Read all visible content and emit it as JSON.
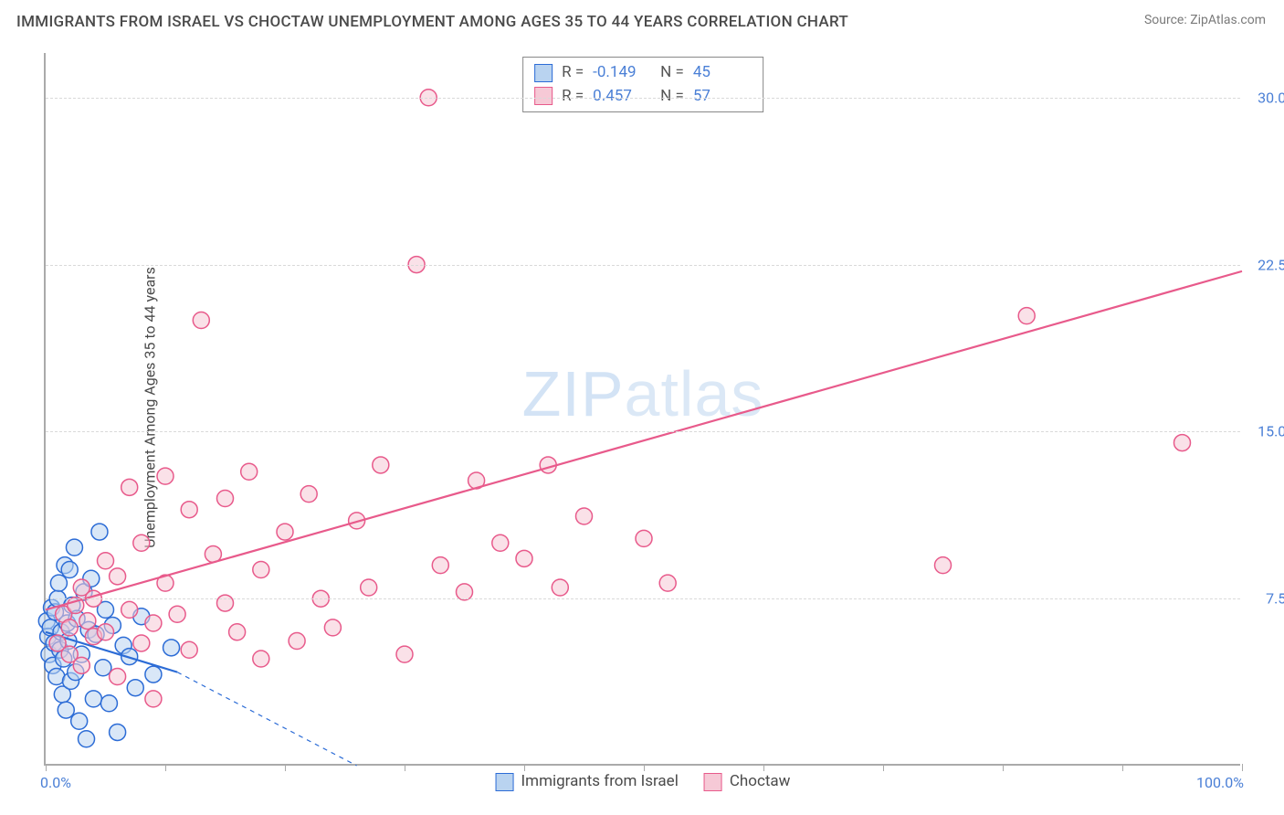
{
  "title": "IMMIGRANTS FROM ISRAEL VS CHOCTAW UNEMPLOYMENT AMONG AGES 35 TO 44 YEARS CORRELATION CHART",
  "source": "Source: ZipAtlas.com",
  "ylabel": "Unemployment Among Ages 35 to 44 years",
  "watermark_a": "ZIP",
  "watermark_b": "atlas",
  "chart": {
    "type": "scatter",
    "xlim": [
      0,
      100
    ],
    "ylim": [
      0,
      32
    ],
    "x_ticks": [
      0,
      10,
      20,
      30,
      40,
      50,
      60,
      70,
      80,
      90,
      100
    ],
    "x_tick_labels": {
      "0": "0.0%",
      "100": "100.0%"
    },
    "y_gridlines": [
      7.5,
      15.0,
      22.5,
      30.0
    ],
    "y_tick_labels": [
      "7.5%",
      "15.0%",
      "22.5%",
      "30.0%"
    ],
    "background_color": "#ffffff",
    "grid_color": "#d9d9d9",
    "axis_color": "#aaaaaa",
    "label_color": "#4a7fd6",
    "marker_radius": 9,
    "marker_stroke_width": 1.5,
    "line_width": 2.2
  },
  "series": [
    {
      "name": "Immigrants from Israel",
      "fill": "#b9d3f0",
      "stroke": "#2c6cd6",
      "fill_opacity": 0.55,
      "r": -0.149,
      "n": 45,
      "trend": {
        "x1": 0,
        "y1": 6.0,
        "x2": 11,
        "y2": 4.2,
        "dash_extend_x2": 26,
        "dash_extend_y2": 0
      },
      "points": [
        [
          0.1,
          6.5
        ],
        [
          0.2,
          5.8
        ],
        [
          0.3,
          5.0
        ],
        [
          0.4,
          6.2
        ],
        [
          0.5,
          7.1
        ],
        [
          0.6,
          4.5
        ],
        [
          0.7,
          5.5
        ],
        [
          0.8,
          6.9
        ],
        [
          0.9,
          4.0
        ],
        [
          1.0,
          7.5
        ],
        [
          1.1,
          8.2
        ],
        [
          1.2,
          5.2
        ],
        [
          1.3,
          6.0
        ],
        [
          1.4,
          3.2
        ],
        [
          1.5,
          4.8
        ],
        [
          1.6,
          9.0
        ],
        [
          1.7,
          2.5
        ],
        [
          1.8,
          6.4
        ],
        [
          1.9,
          5.6
        ],
        [
          2.0,
          8.8
        ],
        [
          2.1,
          3.8
        ],
        [
          2.2,
          7.2
        ],
        [
          2.4,
          9.8
        ],
        [
          2.5,
          4.2
        ],
        [
          2.6,
          6.6
        ],
        [
          2.8,
          2.0
        ],
        [
          3.0,
          5.0
        ],
        [
          3.2,
          7.8
        ],
        [
          3.4,
          1.2
        ],
        [
          3.6,
          6.1
        ],
        [
          3.8,
          8.4
        ],
        [
          4.0,
          3.0
        ],
        [
          4.2,
          5.9
        ],
        [
          4.5,
          10.5
        ],
        [
          4.8,
          4.4
        ],
        [
          5.0,
          7.0
        ],
        [
          5.3,
          2.8
        ],
        [
          5.6,
          6.3
        ],
        [
          6.0,
          1.5
        ],
        [
          6.5,
          5.4
        ],
        [
          7.0,
          4.9
        ],
        [
          7.5,
          3.5
        ],
        [
          8.0,
          6.7
        ],
        [
          9.0,
          4.1
        ],
        [
          10.5,
          5.3
        ]
      ]
    },
    {
      "name": "Choctaw",
      "fill": "#f6c9d6",
      "stroke": "#e85a8b",
      "fill_opacity": 0.55,
      "r": 0.457,
      "n": 57,
      "trend": {
        "x1": 0,
        "y1": 7.0,
        "x2": 100,
        "y2": 22.2
      },
      "points": [
        [
          1,
          5.5
        ],
        [
          1.5,
          6.8
        ],
        [
          2,
          6.2
        ],
        [
          2,
          5.0
        ],
        [
          2.5,
          7.2
        ],
        [
          3,
          8.0
        ],
        [
          3,
          4.5
        ],
        [
          3.5,
          6.5
        ],
        [
          4,
          5.8
        ],
        [
          4,
          7.5
        ],
        [
          5,
          9.2
        ],
        [
          5,
          6.0
        ],
        [
          6,
          4.0
        ],
        [
          6,
          8.5
        ],
        [
          7,
          7.0
        ],
        [
          7,
          12.5
        ],
        [
          8,
          5.5
        ],
        [
          8,
          10.0
        ],
        [
          9,
          6.4
        ],
        [
          9,
          3.0
        ],
        [
          10,
          13.0
        ],
        [
          10,
          8.2
        ],
        [
          11,
          6.8
        ],
        [
          12,
          11.5
        ],
        [
          12,
          5.2
        ],
        [
          13,
          20.0
        ],
        [
          14,
          9.5
        ],
        [
          15,
          7.3
        ],
        [
          15,
          12.0
        ],
        [
          16,
          6.0
        ],
        [
          17,
          13.2
        ],
        [
          18,
          8.8
        ],
        [
          18,
          4.8
        ],
        [
          20,
          10.5
        ],
        [
          21,
          5.6
        ],
        [
          22,
          12.2
        ],
        [
          23,
          7.5
        ],
        [
          24,
          6.2
        ],
        [
          26,
          11.0
        ],
        [
          27,
          8.0
        ],
        [
          28,
          13.5
        ],
        [
          30,
          5.0
        ],
        [
          31,
          22.5
        ],
        [
          32,
          30.0
        ],
        [
          33,
          9.0
        ],
        [
          35,
          7.8
        ],
        [
          36,
          12.8
        ],
        [
          38,
          10.0
        ],
        [
          40,
          9.3
        ],
        [
          42,
          13.5
        ],
        [
          43,
          8.0
        ],
        [
          45,
          11.2
        ],
        [
          50,
          10.2
        ],
        [
          52,
          8.2
        ],
        [
          75,
          9.0
        ],
        [
          82,
          20.2
        ],
        [
          95,
          14.5
        ]
      ]
    }
  ],
  "legend_bottom": [
    {
      "label": "Immigrants from Israel",
      "fill": "#b9d3f0",
      "stroke": "#2c6cd6"
    },
    {
      "label": "Choctaw",
      "fill": "#f6c9d6",
      "stroke": "#e85a8b"
    }
  ]
}
